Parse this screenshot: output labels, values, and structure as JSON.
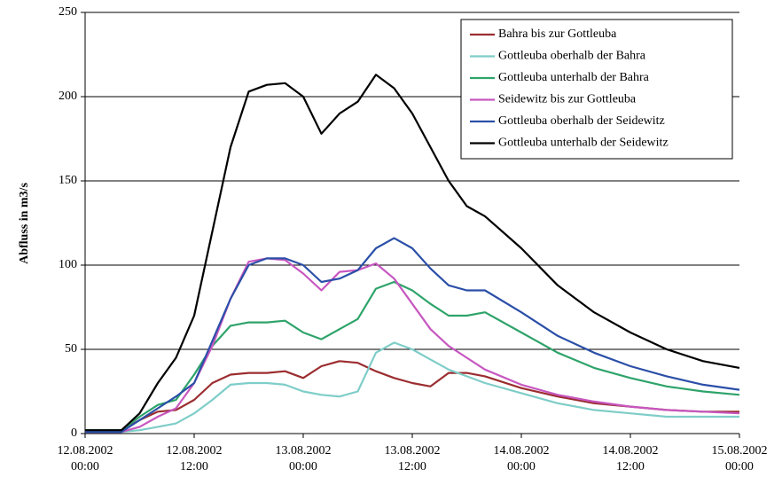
{
  "chart_data": {
    "type": "line",
    "y_label": "Abfluss in m3/s",
    "x": [
      "2002-08-12 00:00",
      "2002-08-12 04:00",
      "2002-08-12 06:00",
      "2002-08-12 08:00",
      "2002-08-12 10:00",
      "2002-08-12 12:00",
      "2002-08-12 14:00",
      "2002-08-12 16:00",
      "2002-08-12 18:00",
      "2002-08-12 20:00",
      "2002-08-12 22:00",
      "2002-08-13 00:00",
      "2002-08-13 02:00",
      "2002-08-13 04:00",
      "2002-08-13 06:00",
      "2002-08-13 08:00",
      "2002-08-13 10:00",
      "2002-08-13 12:00",
      "2002-08-13 14:00",
      "2002-08-13 16:00",
      "2002-08-13 18:00",
      "2002-08-13 20:00",
      "2002-08-14 00:00",
      "2002-08-14 04:00",
      "2002-08-14 08:00",
      "2002-08-14 12:00",
      "2002-08-14 16:00",
      "2002-08-14 20:00",
      "2002-08-15 00:00"
    ],
    "series": [
      {
        "name": "Bahra bis zur Gottleuba",
        "color": "#9b2d30",
        "values": [
          2,
          2,
          8,
          13,
          14,
          20,
          30,
          35,
          36,
          36,
          37,
          33,
          40,
          43,
          42,
          37,
          33,
          30,
          28,
          36,
          36,
          34,
          27,
          22,
          18,
          16,
          14,
          13,
          13
        ]
      },
      {
        "name": "Gottleuba oberhalb der Bahra",
        "color": "#7ecdc8",
        "values": [
          1,
          1,
          2,
          4,
          6,
          12,
          20,
          29,
          30,
          30,
          29,
          25,
          23,
          22,
          25,
          48,
          54,
          50,
          44,
          38,
          34,
          30,
          24,
          18,
          14,
          12,
          10,
          10,
          10
        ]
      },
      {
        "name": "Gottleuba unterhalb der Bahra",
        "color": "#2ea36a",
        "values": [
          2,
          2,
          10,
          17,
          20,
          35,
          52,
          64,
          66,
          66,
          67,
          60,
          56,
          62,
          68,
          86,
          90,
          85,
          77,
          70,
          70,
          72,
          60,
          48,
          39,
          33,
          28,
          25,
          23
        ]
      },
      {
        "name": "Seidewitz bis zur Gottleuba",
        "color": "#c757c0",
        "values": [
          1,
          1,
          4,
          10,
          15,
          30,
          52,
          80,
          102,
          104,
          103,
          95,
          85,
          96,
          97,
          101,
          92,
          77,
          62,
          52,
          45,
          38,
          29,
          23,
          19,
          16,
          14,
          13,
          12
        ]
      },
      {
        "name": "Gottleuba oberhalb der Seidewitz",
        "color": "#2b4fa8",
        "values": [
          1,
          1,
          8,
          15,
          22,
          30,
          55,
          80,
          100,
          104,
          104,
          100,
          90,
          92,
          97,
          110,
          116,
          110,
          98,
          88,
          85,
          85,
          72,
          58,
          48,
          40,
          34,
          29,
          26
        ]
      },
      {
        "name": "Gottleuba unterhalb der Seidewitz",
        "color": "#000000",
        "values": [
          2,
          2,
          12,
          30,
          45,
          70,
          120,
          170,
          203,
          207,
          208,
          200,
          178,
          190,
          197,
          213,
          205,
          190,
          170,
          150,
          135,
          129,
          110,
          88,
          72,
          60,
          50,
          43,
          39
        ]
      }
    ],
    "xlim": [
      "2002-08-12 00:00",
      "2002-08-15 00:00"
    ],
    "xticks": [
      {
        "value": "2002-08-12 00:00",
        "label": "12.08.2002 00:00"
      },
      {
        "value": "2002-08-12 12:00",
        "label": "12.08.2002 12:00"
      },
      {
        "value": "2002-08-13 00:00",
        "label": "13.08.2002 00:00"
      },
      {
        "value": "2002-08-13 12:00",
        "label": "13.08.2002 12:00"
      },
      {
        "value": "2002-08-14 00:00",
        "label": "14.08.2002 00:00"
      },
      {
        "value": "2002-08-14 12:00",
        "label": "14.08.2002 12:00"
      },
      {
        "value": "2002-08-15 00:00",
        "label": "15.08.2002 00:00"
      }
    ],
    "ylim": [
      0,
      250
    ],
    "yticks": [
      0,
      50,
      100,
      150,
      200,
      250
    ],
    "grid": true,
    "legend": "upper right"
  }
}
